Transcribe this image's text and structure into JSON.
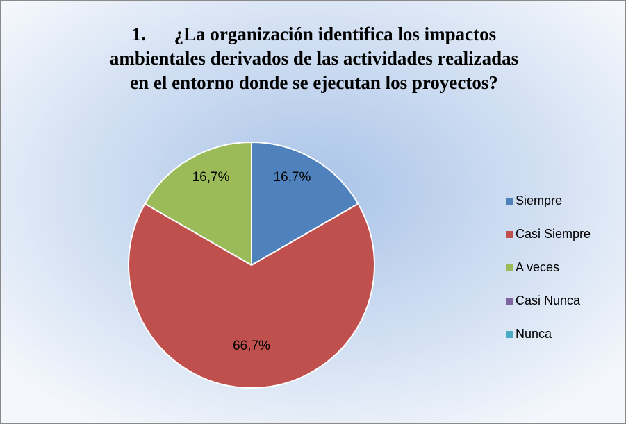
{
  "chart_data": {
    "type": "pie",
    "title": [
      "1.      ¿La organización identifica los impactos",
      "ambientales derivados de las actividades realizadas",
      "en el entorno donde se ejecutan los proyectos?"
    ],
    "categories": [
      "Siempre",
      "Casi Siempre",
      "A veces",
      "Casi Nunca",
      "Nunca"
    ],
    "values": [
      16.7,
      66.7,
      16.7,
      0,
      0
    ],
    "value_labels": [
      "16,7%",
      "66,7%",
      "16,7%",
      null,
      null
    ],
    "colors": [
      "#4f81bd",
      "#c0504d",
      "#9bbb59",
      "#8064a2",
      "#4bacc6"
    ],
    "legend": "right"
  }
}
